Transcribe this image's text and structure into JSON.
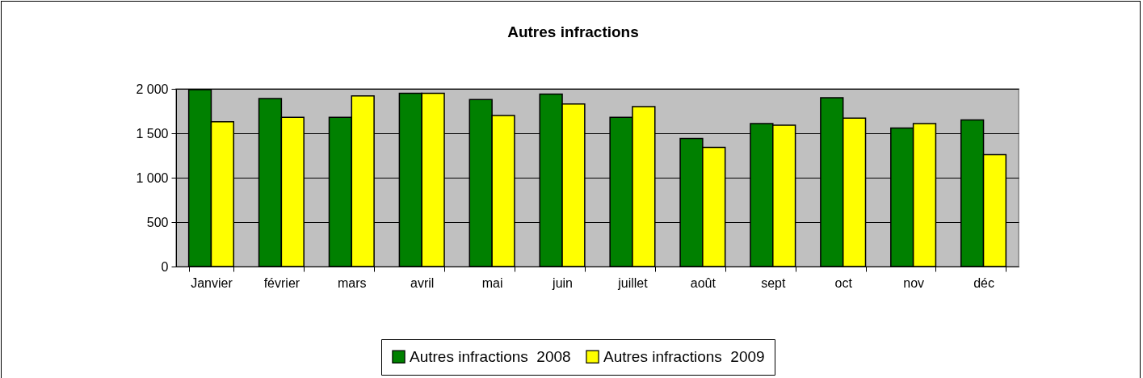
{
  "chart_data": {
    "type": "bar",
    "title": "Autres infractions",
    "categories": [
      "Janvier",
      "février",
      "mars",
      "avril",
      "mai",
      "juin",
      "juillet",
      "août",
      "sept",
      "oct",
      "nov",
      "déc"
    ],
    "series": [
      {
        "name": "Autres infractions  2008",
        "color": "#008000",
        "values": [
          1990,
          1890,
          1680,
          1950,
          1880,
          1940,
          1680,
          1440,
          1610,
          1900,
          1560,
          1650
        ]
      },
      {
        "name": "Autres infractions  2009",
        "color": "#ffff00",
        "values": [
          1630,
          1680,
          1920,
          1950,
          1700,
          1830,
          1800,
          1340,
          1590,
          1670,
          1610,
          1260
        ]
      }
    ],
    "ylim": [
      0,
      2000
    ],
    "yticks": [
      0,
      500,
      {
        "value": 1000,
        "label": "1 000"
      },
      {
        "value": 1500,
        "label": "1 500"
      },
      {
        "value": 2000,
        "label": "2 000"
      }
    ],
    "grid": "y",
    "legend": "bottom"
  }
}
